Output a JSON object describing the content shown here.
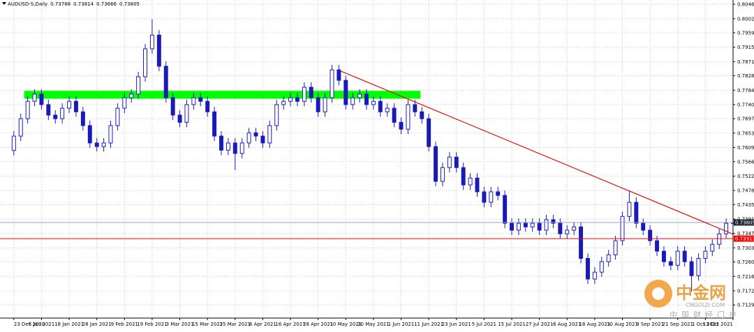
{
  "chart_data": {
    "type": "candlestick",
    "title": "AUDUSD-S,Daily",
    "open": [
      0.76,
      0.7644,
      0.7697,
      0.775,
      0.7772,
      0.774,
      0.7708,
      0.7697,
      0.7729,
      0.775,
      0.7718,
      0.7676,
      0.7623,
      0.7612,
      0.7623,
      0.7676,
      0.7729,
      0.7761,
      0.7772,
      0.7825,
      0.791,
      0.7952,
      0.7857,
      0.7761,
      0.7708,
      0.7686,
      0.774,
      0.7761,
      0.775,
      0.7718,
      0.7644,
      0.7601,
      0.7623,
      0.7591,
      0.7623,
      0.7654,
      0.7644,
      0.7623,
      0.7676,
      0.774,
      0.775,
      0.7761,
      0.775,
      0.7793,
      0.7761,
      0.7718,
      0.7761,
      0.7846,
      0.7814,
      0.774,
      0.7761,
      0.7772,
      0.774,
      0.775,
      0.7718,
      0.7729,
      0.7686,
      0.7665,
      0.774,
      0.7718,
      0.7697,
      0.7612,
      0.7506,
      0.7548,
      0.758,
      0.7548,
      0.7495,
      0.7516,
      0.7474,
      0.7442,
      0.7474,
      0.7463,
      0.7378,
      0.7357,
      0.7378,
      0.7367,
      0.7378,
      0.7357,
      0.7389,
      0.7378,
      0.7346,
      0.7357,
      0.7367,
      0.7271,
      0.7208,
      0.7229,
      0.7261,
      0.7282,
      0.7325,
      0.7399,
      0.7442,
      0.7378,
      0.7357,
      0.7325,
      0.7293,
      0.7261,
      0.725,
      0.7293,
      0.7261,
      0.7218,
      0.7271,
      0.7293,
      0.7314,
      0.7346,
      0.73768
    ],
    "high": [
      0.7659,
      0.7712,
      0.7765,
      0.7787,
      0.7787,
      0.7755,
      0.7723,
      0.7744,
      0.7765,
      0.7765,
      0.7733,
      0.7691,
      0.7638,
      0.7638,
      0.7691,
      0.7744,
      0.7776,
      0.7787,
      0.784,
      0.7925,
      0.8,
      0.7967,
      0.7872,
      0.7776,
      0.7723,
      0.7755,
      0.7776,
      0.7776,
      0.7765,
      0.7733,
      0.7659,
      0.7638,
      0.7638,
      0.7638,
      0.7669,
      0.7669,
      0.7659,
      0.7691,
      0.7755,
      0.7765,
      0.7776,
      0.7776,
      0.7808,
      0.7808,
      0.7776,
      0.7776,
      0.7861,
      0.7861,
      0.7829,
      0.7776,
      0.7787,
      0.7787,
      0.7765,
      0.7765,
      0.7744,
      0.7744,
      0.7701,
      0.7755,
      0.7755,
      0.7733,
      0.7712,
      0.7627,
      0.7563,
      0.7595,
      0.7595,
      0.7563,
      0.7531,
      0.7531,
      0.7489,
      0.7489,
      0.7489,
      0.7478,
      0.7393,
      0.7393,
      0.7393,
      0.7393,
      0.7393,
      0.7404,
      0.7404,
      0.7393,
      0.7372,
      0.7382,
      0.7382,
      0.7286,
      0.7244,
      0.7276,
      0.7297,
      0.734,
      0.7414,
      0.7478,
      0.7457,
      0.7393,
      0.7372,
      0.734,
      0.7308,
      0.7276,
      0.7308,
      0.7308,
      0.7276,
      0.7286,
      0.7308,
      0.7329,
      0.7361,
      0.7393,
      0.73814
    ],
    "low": [
      0.7585,
      0.7629,
      0.7682,
      0.7735,
      0.7725,
      0.7693,
      0.7682,
      0.7682,
      0.7714,
      0.7703,
      0.7661,
      0.7608,
      0.7597,
      0.7597,
      0.7608,
      0.7661,
      0.7714,
      0.7746,
      0.7757,
      0.781,
      0.7895,
      0.7842,
      0.7746,
      0.7693,
      0.7671,
      0.7671,
      0.7725,
      0.7735,
      0.7703,
      0.7629,
      0.7586,
      0.7586,
      0.754,
      0.7576,
      0.7608,
      0.7629,
      0.7608,
      0.7608,
      0.7661,
      0.7725,
      0.7735,
      0.7735,
      0.7735,
      0.7746,
      0.7703,
      0.7703,
      0.7746,
      0.7799,
      0.7725,
      0.7725,
      0.7746,
      0.7725,
      0.7725,
      0.7703,
      0.7703,
      0.7671,
      0.765,
      0.765,
      0.7703,
      0.7682,
      0.7597,
      0.7491,
      0.7491,
      0.7533,
      0.7533,
      0.748,
      0.748,
      0.7459,
      0.7427,
      0.7427,
      0.7448,
      0.7363,
      0.7342,
      0.7342,
      0.7352,
      0.7352,
      0.7342,
      0.7342,
      0.7363,
      0.7331,
      0.7331,
      0.7342,
      0.7256,
      0.7193,
      0.7193,
      0.7214,
      0.7246,
      0.7267,
      0.731,
      0.7384,
      0.7363,
      0.7342,
      0.731,
      0.7278,
      0.7246,
      0.7235,
      0.7235,
      0.7246,
      0.717,
      0.7203,
      0.7256,
      0.7278,
      0.7299,
      0.7331,
      0.73666
    ],
    "close": [
      0.7644,
      0.7697,
      0.775,
      0.7772,
      0.774,
      0.7708,
      0.7697,
      0.7729,
      0.775,
      0.7718,
      0.7676,
      0.7623,
      0.7612,
      0.7623,
      0.7676,
      0.7729,
      0.7761,
      0.7772,
      0.7825,
      0.791,
      0.7952,
      0.7857,
      0.7761,
      0.7708,
      0.7686,
      0.774,
      0.7761,
      0.775,
      0.7718,
      0.7644,
      0.7601,
      0.7623,
      0.7591,
      0.7623,
      0.7654,
      0.7644,
      0.7623,
      0.7676,
      0.774,
      0.775,
      0.7761,
      0.775,
      0.7793,
      0.7761,
      0.7718,
      0.7761,
      0.7846,
      0.7814,
      0.774,
      0.7761,
      0.7772,
      0.774,
      0.775,
      0.7718,
      0.7729,
      0.7686,
      0.7665,
      0.774,
      0.7718,
      0.7697,
      0.7612,
      0.7506,
      0.7548,
      0.758,
      0.7548,
      0.7495,
      0.7516,
      0.7474,
      0.7442,
      0.7474,
      0.7463,
      0.7378,
      0.7357,
      0.7378,
      0.7367,
      0.7378,
      0.7357,
      0.7389,
      0.7378,
      0.7346,
      0.7357,
      0.7367,
      0.7271,
      0.7208,
      0.7229,
      0.7261,
      0.7282,
      0.7325,
      0.7399,
      0.7442,
      0.7378,
      0.7357,
      0.7325,
      0.7293,
      0.7261,
      0.725,
      0.7293,
      0.7261,
      0.7218,
      0.7271,
      0.7293,
      0.7314,
      0.7346,
      0.7378,
      0.73805
    ],
    "header_values": [
      "open",
      "high",
      "low",
      "close"
    ],
    "up_color": "#ffffff",
    "down_color": "#1a1ab8",
    "line_color": "#1a1ab8",
    "xlim": [
      -2,
      104
    ],
    "ylim": [
      0.7089,
      0.8059
    ],
    "grid": true,
    "xticks": [
      {
        "value": 0,
        "label": "23 Dec 2020"
      },
      {
        "value": 4,
        "label": "6 Jan 2021"
      },
      {
        "value": 8,
        "label": "18 Jan 2021"
      },
      {
        "value": 12,
        "label": "28 Jan 2021"
      },
      {
        "value": 16,
        "label": "9 Feb 2021"
      },
      {
        "value": 20,
        "label": "19 Feb 2021"
      },
      {
        "value": 24,
        "label": "3 Mar 2021"
      },
      {
        "value": 28,
        "label": "15 Mar 2021"
      },
      {
        "value": 32,
        "label": "25 Mar 2021"
      },
      {
        "value": 36,
        "label": "6 Apr 2021"
      },
      {
        "value": 40,
        "label": "16 Apr 2021"
      },
      {
        "value": 44,
        "label": "28 Apr 2021"
      },
      {
        "value": 48,
        "label": "10 May 2021"
      },
      {
        "value": 52,
        "label": "20 May 2021"
      },
      {
        "value": 56,
        "label": "1 Jun 2021"
      },
      {
        "value": 60,
        "label": "11 Jun 2021"
      },
      {
        "value": 64,
        "label": "23 Jun 2021"
      },
      {
        "value": 68,
        "label": "5 Jul 2021"
      },
      {
        "value": 72,
        "label": "15 Jul 2021"
      },
      {
        "value": 76,
        "label": "27 Jul 2021"
      },
      {
        "value": 80,
        "label": "6 Aug 2021"
      },
      {
        "value": 84,
        "label": "18 Aug 2021"
      },
      {
        "value": 88,
        "label": "30 Aug 2021"
      },
      {
        "value": 92,
        "label": "9 Sep 2021"
      },
      {
        "value": 96,
        "label": "21 Sep 2021"
      },
      {
        "value": 100,
        "label": "1 Oct 2021"
      },
      {
        "value": 104,
        "label": "13 Oct 2021"
      }
    ],
    "yticks": [
      {
        "value": 0.8046,
        "label": "0.80460"
      },
      {
        "value": 0.8002,
        "label": "0.80020"
      },
      {
        "value": 0.7959,
        "label": "0.79590"
      },
      {
        "value": 0.7915,
        "label": "0.79150"
      },
      {
        "value": 0.7871,
        "label": "0.78710"
      },
      {
        "value": 0.7828,
        "label": "0.78280"
      },
      {
        "value": 0.7784,
        "label": "0.77840"
      },
      {
        "value": 0.774,
        "label": "0.77400"
      },
      {
        "value": 0.7697,
        "label": "0.76970"
      },
      {
        "value": 0.7653,
        "label": "0.76530"
      },
      {
        "value": 0.7609,
        "label": "0.76090"
      },
      {
        "value": 0.7566,
        "label": "0.75660"
      },
      {
        "value": 0.7522,
        "label": "0.75220"
      },
      {
        "value": 0.7478,
        "label": "0.74780"
      },
      {
        "value": 0.7435,
        "label": "0.74350"
      },
      {
        "value": 0.7391,
        "label": "0.73910"
      },
      {
        "value": 0.7347,
        "label": "0.73470"
      },
      {
        "value": 0.7303,
        "label": "0.73030"
      },
      {
        "value": 0.726,
        "label": "0.72600"
      },
      {
        "value": 0.7216,
        "label": "0.72160"
      },
      {
        "value": 0.7172,
        "label": "0.71720"
      },
      {
        "value": 0.7129,
        "label": "0.71290"
      }
    ],
    "price_lines": [
      {
        "value": 0.73805,
        "label": "0.73805",
        "color": "#8fa3bf",
        "box_color": "#1c2230"
      },
      {
        "value": 0.73313,
        "label": "0.73313",
        "color": "#ff0000",
        "box_color": "#ff0000"
      }
    ],
    "trend_line": {
      "start": [
        47.3,
        0.7842
      ],
      "end": [
        104,
        0.7345
      ],
      "color": "#e01010"
    },
    "zone": {
      "x": [
        1.5,
        58.8
      ],
      "y": [
        0.7758,
        0.7782
      ],
      "color": "#00ff00"
    },
    "watermark": {
      "name": "中金网",
      "site": "CNGOLD.COM",
      "slogan": "中国财经门户"
    }
  }
}
